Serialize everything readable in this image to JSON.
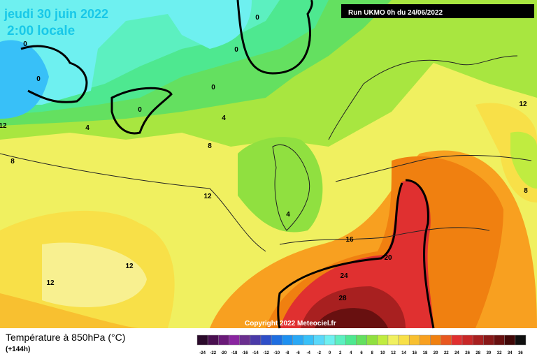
{
  "header": {
    "date": "jeudi 30 juin 2022",
    "time": "2:00 locale",
    "run": "Run UKMO 0h du 24/06/2022"
  },
  "map": {
    "copyright": "Copyright 2022 Meteociel.fr",
    "contour_labels": [
      0,
      0,
      0,
      0,
      0,
      0,
      4,
      4,
      4,
      8,
      8,
      8,
      12,
      12,
      12,
      12,
      12,
      16,
      20,
      24,
      28
    ]
  },
  "legend": {
    "title": "Température à 850hPa (°C)",
    "lead": "(+144h)",
    "ticks": [
      -24,
      -22,
      -20,
      -18,
      -16,
      -14,
      -12,
      -10,
      -8,
      -6,
      -4,
      -2,
      0,
      2,
      4,
      6,
      8,
      10,
      12,
      14,
      16,
      18,
      20,
      22,
      24,
      26,
      28,
      30,
      32,
      34,
      36
    ],
    "colors": [
      "#2b0b2b",
      "#4a1050",
      "#6a1a78",
      "#8a25a0",
      "#6b2f8f",
      "#4a3aa8",
      "#2f4fc8",
      "#1f6ee0",
      "#1e90f0",
      "#2aa8f5",
      "#38c0f8",
      "#5ad8fa",
      "#6ef0f0",
      "#5cf0c0",
      "#4ee890",
      "#64e060",
      "#90e040",
      "#c0ec40",
      "#f0f060",
      "#f8e048",
      "#f8c030",
      "#f8a020",
      "#f08010",
      "#e85820",
      "#e03030",
      "#c82828",
      "#a82020",
      "#881818",
      "#681010",
      "#400808",
      "#101010"
    ]
  }
}
